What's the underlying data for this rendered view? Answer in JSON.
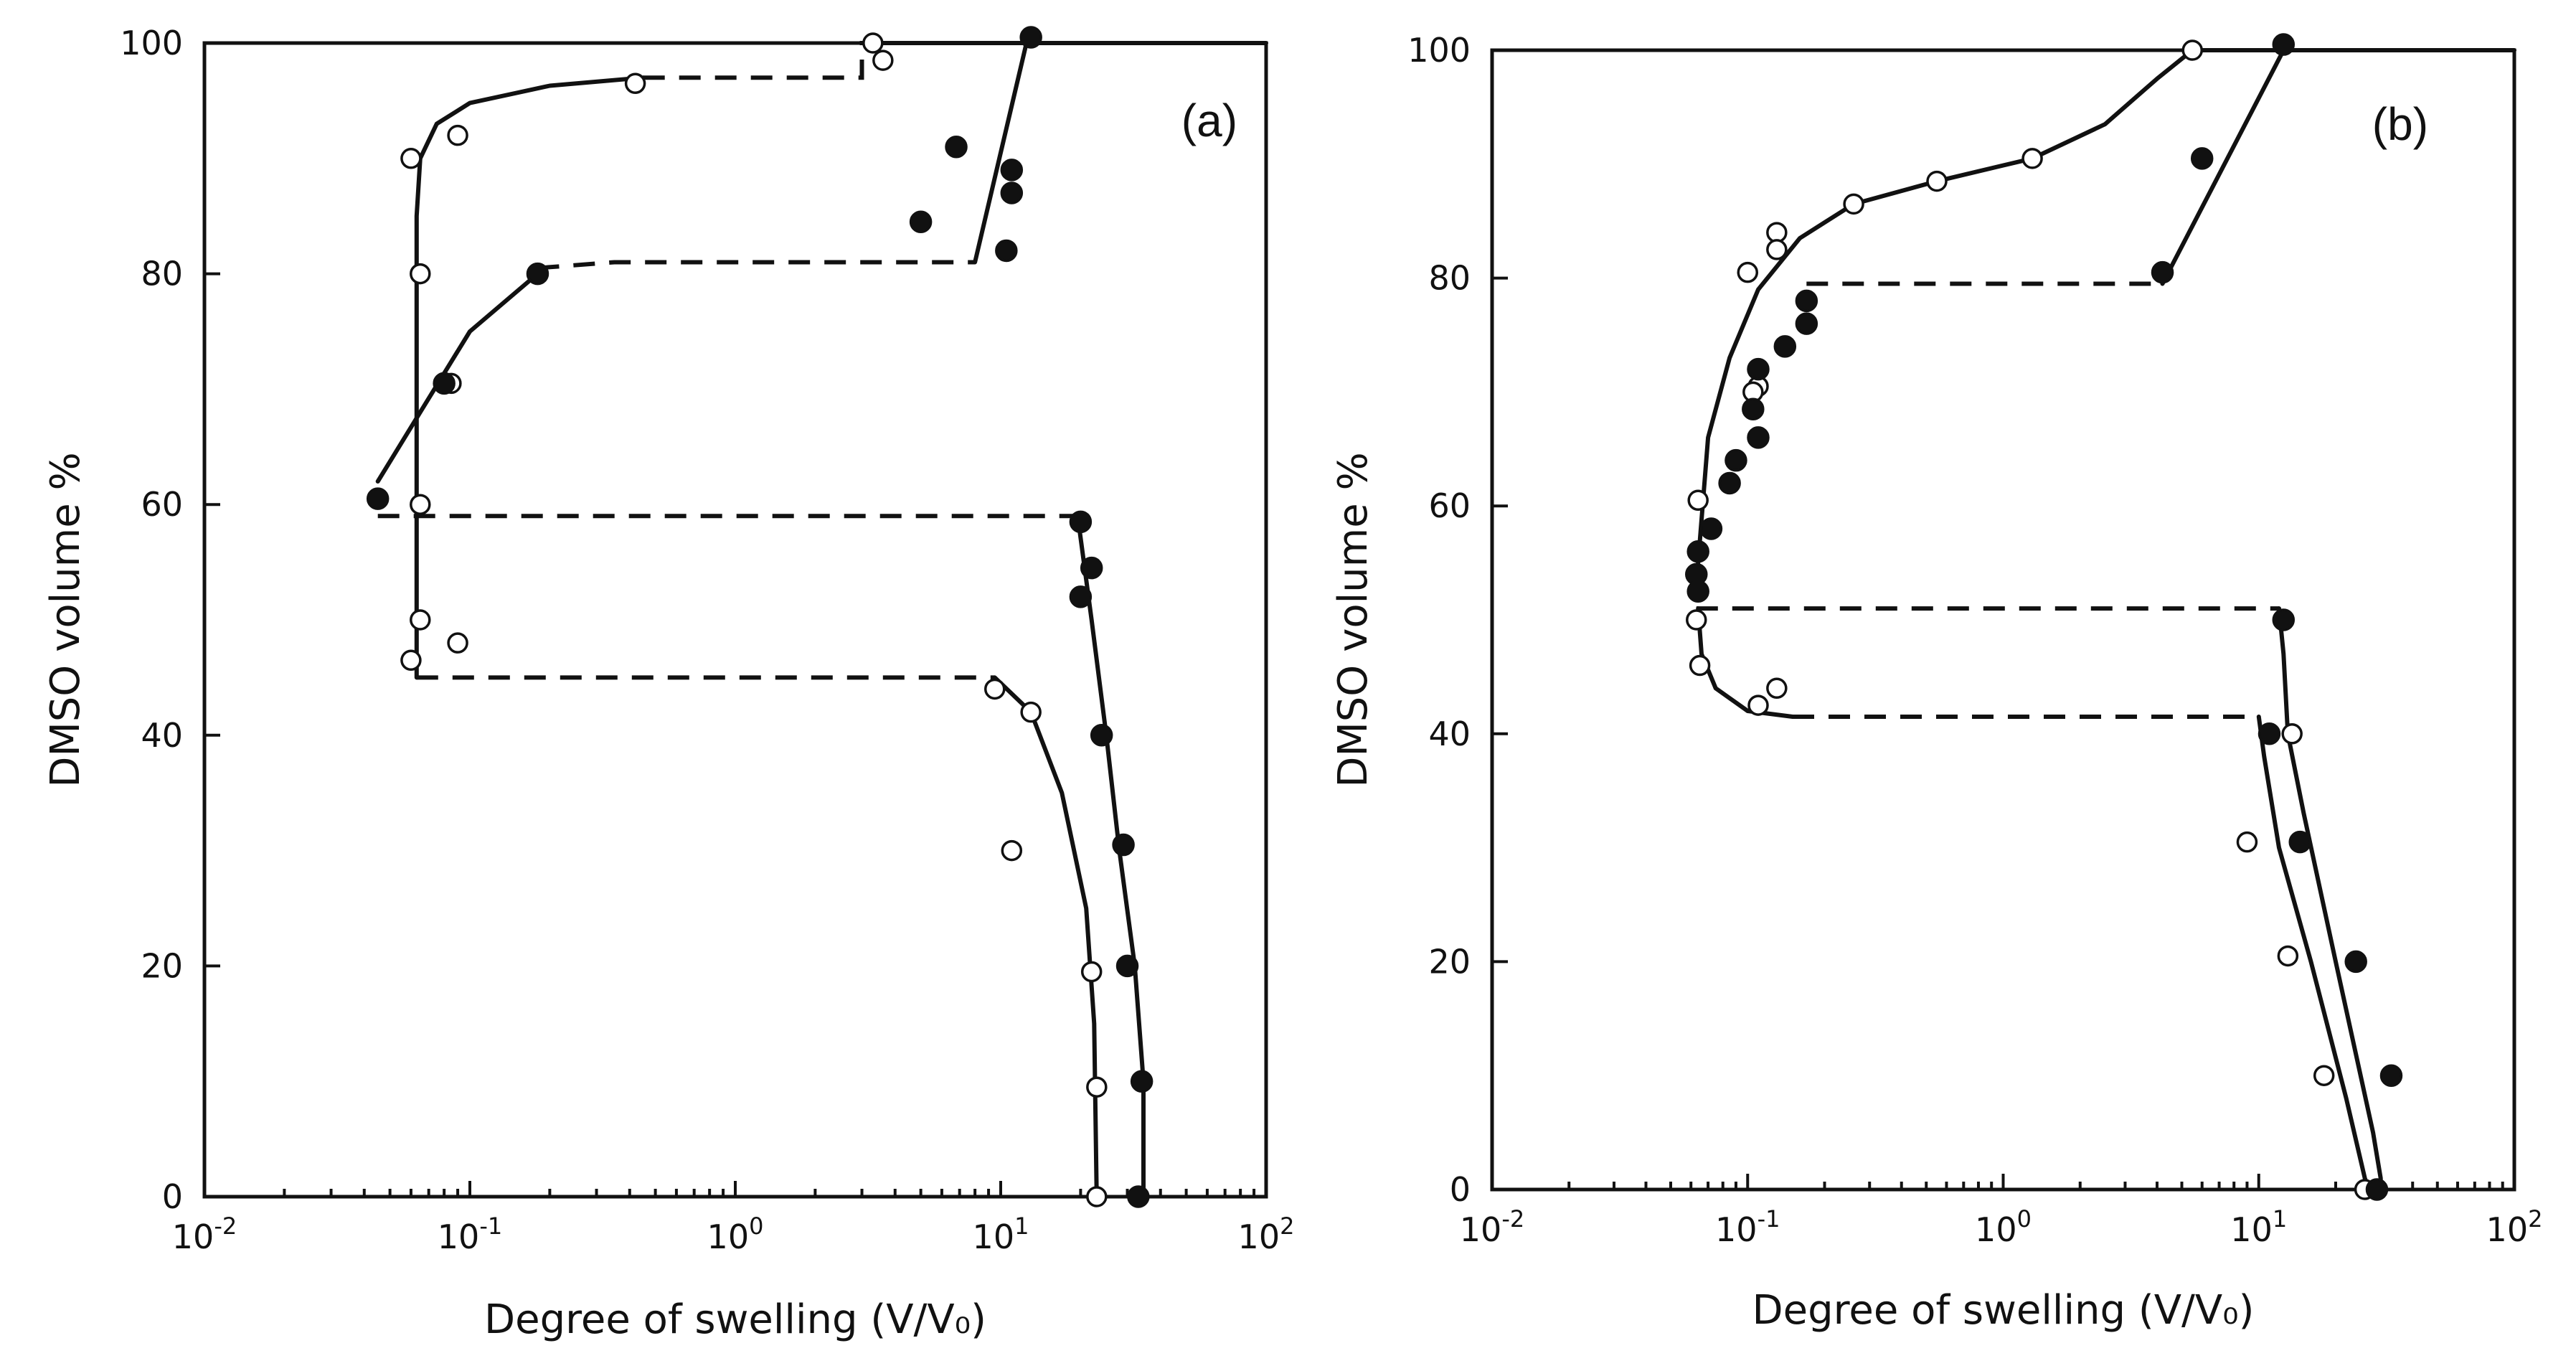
{
  "chart_data": [
    {
      "type": "scatter",
      "panel": "(a)",
      "title": "",
      "xlabel": "Degree of swelling (V/V₀)",
      "ylabel": "DMSO volume %",
      "xscale": "log",
      "xlim": [
        0.01,
        100
      ],
      "ylim": [
        0,
        100
      ],
      "xticks": [
        {
          "value": 0.01,
          "base": "10",
          "exp": "-2"
        },
        {
          "value": 0.1,
          "base": "10",
          "exp": "-1"
        },
        {
          "value": 1,
          "base": "10",
          "exp": "0"
        },
        {
          "value": 10,
          "base": "10",
          "exp": "1"
        },
        {
          "value": 100,
          "base": "10",
          "exp": "2"
        }
      ],
      "yticks": [
        "0",
        "20",
        "40",
        "60",
        "80",
        "100"
      ],
      "series": [
        {
          "name": "open circles",
          "marker": "open",
          "x": [
            3.3,
            3.6,
            0.42,
            0.09,
            0.06,
            0.065,
            0.085,
            0.065,
            0.065,
            0.06,
            0.09,
            9.5,
            13,
            11,
            22,
            23,
            23
          ],
          "y": [
            100,
            98.5,
            96.5,
            92,
            90,
            80,
            70.5,
            60,
            50,
            46.5,
            48,
            44,
            42,
            30,
            19.5,
            9.5,
            0
          ]
        },
        {
          "name": "filled circles",
          "marker": "filled",
          "x": [
            13,
            6.8,
            11,
            11,
            5,
            10.5,
            0.18,
            0.08,
            0.045,
            20,
            22,
            20,
            24,
            29,
            30,
            34,
            33
          ],
          "y": [
            100.5,
            91,
            89,
            87,
            84.5,
            82,
            80,
            70.5,
            60.5,
            58.5,
            54.5,
            52,
            40,
            30.5,
            20,
            10,
            0
          ]
        }
      ],
      "curves": [
        {
          "style": "solid",
          "x": [
            0.063,
            0.063,
            0.065,
            0.075,
            0.1,
            0.2,
            0.45
          ],
          "y": [
            45,
            85,
            90,
            93,
            94.8,
            96.3,
            97
          ]
        },
        {
          "style": "dashed",
          "x": [
            0.45,
            3.0,
            3.0,
            3.3
          ],
          "y": [
            97,
            97,
            100,
            100
          ]
        },
        {
          "style": "solid",
          "x": [
            3.3,
            100
          ],
          "y": [
            100,
            100
          ]
        },
        {
          "style": "solid",
          "x": [
            0.045,
            0.065,
            0.1,
            0.18
          ],
          "y": [
            62,
            68,
            75,
            80
          ]
        },
        {
          "style": "dashed",
          "x": [
            0.18,
            0.35,
            8.0
          ],
          "y": [
            80.5,
            81,
            81
          ]
        },
        {
          "style": "solid",
          "x": [
            8.0,
            12.5
          ],
          "y": [
            81,
            100
          ]
        },
        {
          "style": "dashed",
          "x": [
            0.045,
            19.5
          ],
          "y": [
            59,
            59
          ]
        },
        {
          "style": "solid",
          "x": [
            19.5,
            22,
            25,
            28,
            32,
            34.5,
            34.5
          ],
          "y": [
            59,
            50,
            40,
            30,
            20,
            10,
            0
          ]
        },
        {
          "style": "dashed",
          "x": [
            0.063,
            9.5
          ],
          "y": [
            45,
            45
          ]
        },
        {
          "style": "solid",
          "x": [
            9.5,
            13,
            17,
            21,
            22.5,
            23
          ],
          "y": [
            45,
            42,
            35,
            25,
            15,
            0
          ]
        }
      ]
    },
    {
      "type": "scatter",
      "panel": "(b)",
      "title": "",
      "xlabel": "Degree of swelling (V/V₀)",
      "ylabel": "DMSO volume %",
      "xscale": "log",
      "xlim": [
        0.01,
        100
      ],
      "ylim": [
        0,
        100
      ],
      "xticks": [
        {
          "value": 0.01,
          "base": "10",
          "exp": "-2"
        },
        {
          "value": 0.1,
          "base": "10",
          "exp": "-1"
        },
        {
          "value": 1,
          "base": "10",
          "exp": "0"
        },
        {
          "value": 10,
          "base": "10",
          "exp": "1"
        },
        {
          "value": 100,
          "base": "10",
          "exp": "2"
        }
      ],
      "yticks": [
        "0",
        "20",
        "40",
        "60",
        "80",
        "100"
      ],
      "series": [
        {
          "name": "open circles",
          "marker": "open",
          "x": [
            5.5,
            1.3,
            0.55,
            0.26,
            0.13,
            0.13,
            0.1,
            0.11,
            0.105,
            0.064,
            0.063,
            0.065,
            0.11,
            0.13,
            13.5,
            9,
            13,
            18,
            26
          ],
          "y": [
            100,
            90.5,
            88.5,
            86.5,
            84,
            82.5,
            80.5,
            70.5,
            70,
            60.5,
            50,
            46,
            42.5,
            44,
            40,
            30.5,
            20.5,
            10,
            0
          ]
        },
        {
          "name": "filled circles",
          "marker": "filled",
          "x": [
            12.5,
            6,
            4.2,
            0.17,
            0.17,
            0.14,
            0.11,
            0.105,
            0.11,
            0.09,
            0.085,
            0.072,
            0.064,
            0.063,
            0.064,
            12.5,
            11,
            14.5,
            24,
            33,
            29
          ],
          "y": [
            100.5,
            90.5,
            80.5,
            78,
            76,
            74,
            72,
            68.5,
            66,
            64,
            62,
            58,
            56,
            54,
            52.5,
            50,
            40,
            30.5,
            20,
            10,
            0
          ]
        }
      ],
      "curves": [
        {
          "style": "solid",
          "x": [
            0.064,
            0.07,
            0.085,
            0.11,
            0.16,
            0.26,
            0.55,
            1.3,
            2.5,
            4,
            5.5,
            10
          ],
          "y": [
            55,
            66,
            73,
            79,
            83.5,
            86.5,
            88.5,
            90.5,
            93.5,
            97.5,
            100,
            100
          ]
        },
        {
          "style": "solid",
          "x": [
            10,
            100
          ],
          "y": [
            100,
            100
          ]
        },
        {
          "style": "dashed",
          "x": [
            0.17,
            4.2
          ],
          "y": [
            79.5,
            79.5
          ]
        },
        {
          "style": "solid",
          "x": [
            4.2,
            12.5
          ],
          "y": [
            79.5,
            100
          ]
        },
        {
          "style": "dashed",
          "x": [
            0.063,
            12
          ],
          "y": [
            51,
            51
          ]
        },
        {
          "style": "solid",
          "x": [
            12,
            12.5,
            13,
            15,
            20,
            28,
            30,
            30
          ],
          "y": [
            51,
            47,
            40,
            33,
            20,
            5,
            1,
            0
          ]
        },
        {
          "style": "solid",
          "x": [
            0.064,
            0.066,
            0.075,
            0.1,
            0.15
          ],
          "y": [
            51,
            47,
            44,
            42,
            41.5
          ]
        },
        {
          "style": "dashed",
          "x": [
            0.15,
            10
          ],
          "y": [
            41.5,
            41.5
          ]
        },
        {
          "style": "solid",
          "x": [
            10,
            10.5,
            12,
            16,
            22,
            26,
            27
          ],
          "y": [
            41.5,
            38,
            30,
            20,
            8,
            1,
            0
          ]
        }
      ]
    }
  ]
}
